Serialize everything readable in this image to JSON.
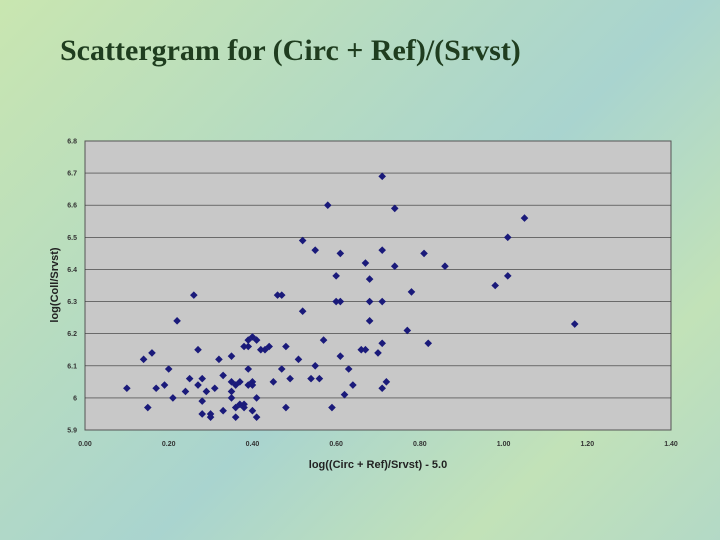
{
  "slide": {
    "title": "Scattergram for (Circ + Ref)/(Srvst)"
  },
  "chart_data": {
    "type": "scatter",
    "xlabel": "log((Circ + Ref)/Srvst) - 5.0",
    "ylabel": "log(Coll/Srvst)",
    "xlim": [
      0,
      1.4
    ],
    "ylim": [
      5.9,
      6.8
    ],
    "x_ticks": [
      "0.00",
      "0.20",
      "0.40",
      "0.60",
      "0.80",
      "1.00",
      "1.20",
      "1.40"
    ],
    "y_ticks": [
      "5.9",
      "6",
      "6.1",
      "6.2",
      "6.3",
      "6.4",
      "6.5",
      "6.6",
      "6.7",
      "6.8"
    ],
    "grid": true,
    "marker_color": "#1a1a7a",
    "plot_background": "#c8c8c8",
    "points": [
      [
        0.1,
        6.03
      ],
      [
        0.14,
        6.12
      ],
      [
        0.15,
        5.97
      ],
      [
        0.16,
        6.14
      ],
      [
        0.17,
        6.03
      ],
      [
        0.19,
        6.04
      ],
      [
        0.2,
        6.09
      ],
      [
        0.21,
        6.0
      ],
      [
        0.22,
        6.24
      ],
      [
        0.24,
        6.02
      ],
      [
        0.25,
        6.06
      ],
      [
        0.26,
        6.32
      ],
      [
        0.27,
        6.15
      ],
      [
        0.27,
        6.04
      ],
      [
        0.28,
        5.95
      ],
      [
        0.28,
        5.99
      ],
      [
        0.28,
        6.06
      ],
      [
        0.29,
        6.02
      ],
      [
        0.3,
        5.95
      ],
      [
        0.3,
        5.94
      ],
      [
        0.31,
        6.03
      ],
      [
        0.32,
        6.12
      ],
      [
        0.33,
        6.07
      ],
      [
        0.33,
        5.96
      ],
      [
        0.35,
        6.13
      ],
      [
        0.35,
        6.05
      ],
      [
        0.35,
        6.02
      ],
      [
        0.35,
        6.0
      ],
      [
        0.36,
        6.04
      ],
      [
        0.36,
        5.97
      ],
      [
        0.36,
        5.94
      ],
      [
        0.37,
        6.05
      ],
      [
        0.37,
        5.98
      ],
      [
        0.38,
        6.16
      ],
      [
        0.38,
        5.98
      ],
      [
        0.38,
        5.97
      ],
      [
        0.39,
        6.18
      ],
      [
        0.39,
        6.16
      ],
      [
        0.39,
        6.09
      ],
      [
        0.39,
        6.04
      ],
      [
        0.4,
        6.19
      ],
      [
        0.4,
        6.05
      ],
      [
        0.4,
        6.04
      ],
      [
        0.4,
        5.96
      ],
      [
        0.41,
        6.18
      ],
      [
        0.41,
        6.0
      ],
      [
        0.41,
        5.94
      ],
      [
        0.42,
        6.15
      ],
      [
        0.43,
        6.15
      ],
      [
        0.44,
        6.16
      ],
      [
        0.45,
        6.05
      ],
      [
        0.46,
        6.32
      ],
      [
        0.47,
        6.32
      ],
      [
        0.47,
        6.09
      ],
      [
        0.48,
        6.16
      ],
      [
        0.48,
        5.97
      ],
      [
        0.49,
        6.06
      ],
      [
        0.51,
        6.12
      ],
      [
        0.52,
        6.49
      ],
      [
        0.52,
        6.27
      ],
      [
        0.54,
        6.06
      ],
      [
        0.55,
        6.46
      ],
      [
        0.55,
        6.1
      ],
      [
        0.56,
        6.06
      ],
      [
        0.57,
        6.18
      ],
      [
        0.58,
        6.6
      ],
      [
        0.59,
        5.97
      ],
      [
        0.6,
        6.3
      ],
      [
        0.6,
        6.38
      ],
      [
        0.61,
        6.45
      ],
      [
        0.61,
        6.3
      ],
      [
        0.61,
        6.13
      ],
      [
        0.62,
        6.01
      ],
      [
        0.63,
        6.09
      ],
      [
        0.64,
        6.04
      ],
      [
        0.66,
        6.15
      ],
      [
        0.67,
        6.42
      ],
      [
        0.67,
        6.15
      ],
      [
        0.68,
        6.37
      ],
      [
        0.68,
        6.3
      ],
      [
        0.68,
        6.24
      ],
      [
        0.7,
        6.14
      ],
      [
        0.71,
        6.69
      ],
      [
        0.71,
        6.46
      ],
      [
        0.71,
        6.3
      ],
      [
        0.71,
        6.17
      ],
      [
        0.71,
        6.03
      ],
      [
        0.72,
        6.05
      ],
      [
        0.74,
        6.59
      ],
      [
        0.74,
        6.41
      ],
      [
        0.77,
        6.21
      ],
      [
        0.78,
        6.33
      ],
      [
        0.81,
        6.45
      ],
      [
        0.82,
        6.17
      ],
      [
        0.86,
        6.41
      ],
      [
        0.98,
        6.35
      ],
      [
        1.01,
        6.5
      ],
      [
        1.01,
        6.38
      ],
      [
        1.05,
        6.56
      ],
      [
        1.17,
        6.23
      ]
    ]
  }
}
